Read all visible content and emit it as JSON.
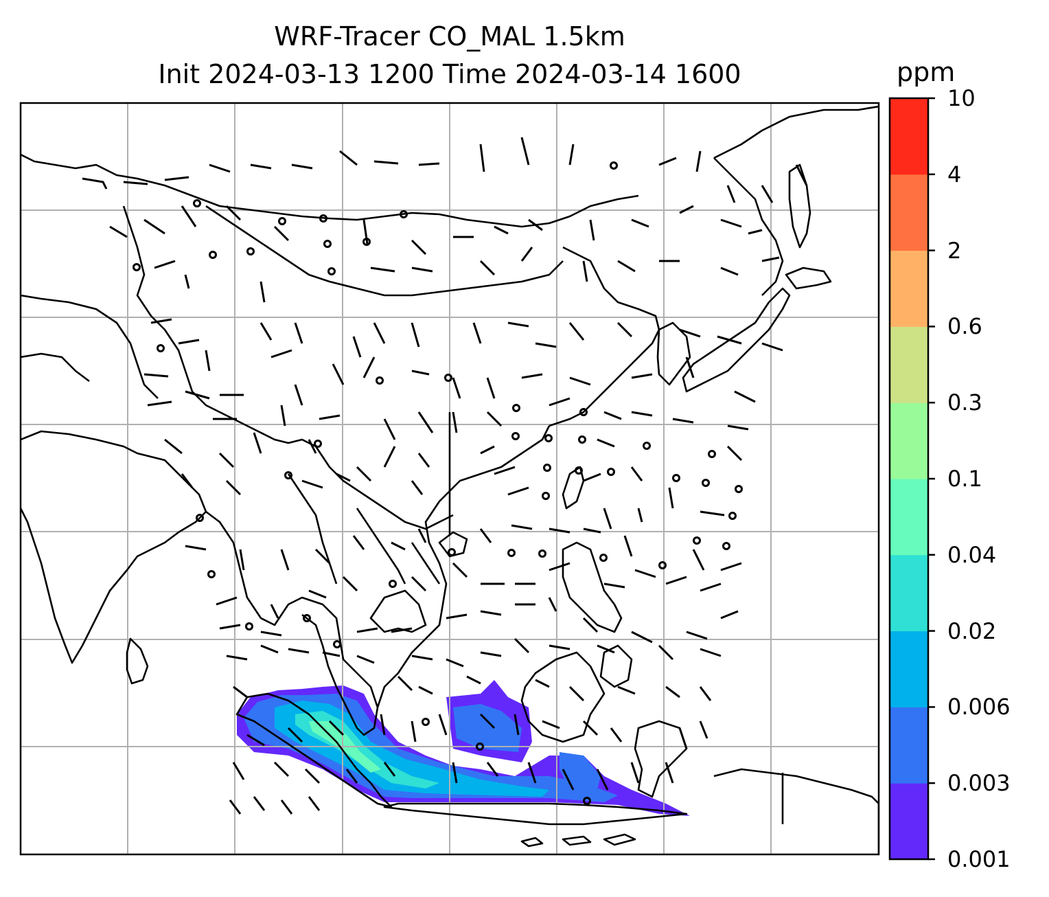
{
  "title": {
    "line1": "WRF-Tracer CO_MAL 1.5km",
    "line2": "Init 2024-03-13 1200 Time 2024-03-14 1600"
  },
  "colorbar": {
    "unit": "ppm",
    "levels": [
      "0.001",
      "0.003",
      "0.006",
      "0.02",
      "0.04",
      "0.1",
      "0.3",
      "0.6",
      "2",
      "4",
      "10"
    ],
    "colors": [
      "#6329fb",
      "#3374f4",
      "#01b1eb",
      "#30e0d5",
      "#67fbbd",
      "#99fa99",
      "#cde185",
      "#ffb266",
      "#ff7141",
      "#ff2a1a"
    ]
  },
  "map": {
    "gridlines": true,
    "features": [
      "coastlines",
      "country borders",
      "wind barbs",
      "CO tracer contours"
    ]
  },
  "plume": {
    "region": "south of Malay Peninsula / Sumatra–Java area",
    "max_level": "0.04"
  }
}
